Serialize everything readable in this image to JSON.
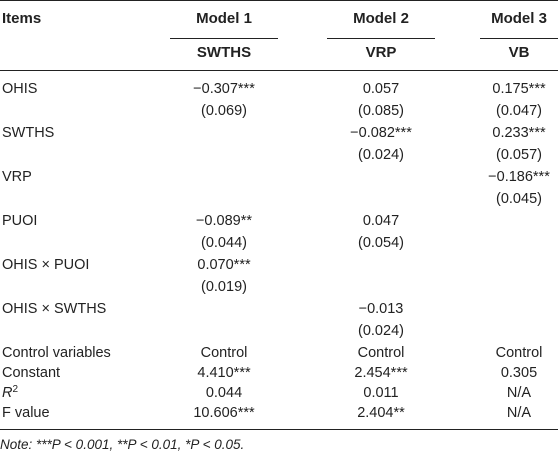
{
  "header": {
    "items": "Items",
    "models": [
      "Model 1",
      "Model 2",
      "Model 3"
    ],
    "dvs": [
      "SWTHS",
      "VRP",
      "VB"
    ]
  },
  "rows": [
    {
      "label": "OHIS",
      "m1": "−0.307***",
      "m1_se": "(0.069)",
      "m2": "0.057",
      "m2_se": "(0.085)",
      "m3": "0.175***",
      "m3_se": "(0.047)"
    },
    {
      "label": "SWTHS",
      "m2": "−0.082***",
      "m2_se": "(0.024)",
      "m3": "0.233***",
      "m3_se": "(0.057)"
    },
    {
      "label": "VRP",
      "m3": "−0.186***",
      "m3_se": "(0.045)"
    },
    {
      "label": "PUOI",
      "m1": "−0.089**",
      "m1_se": "(0.044)",
      "m2": "0.047",
      "m2_se": "(0.054)"
    },
    {
      "label": "OHIS × PUOI",
      "m1": "0.070***",
      "m1_se": "(0.019)"
    },
    {
      "label": "OHIS × SWTHS",
      "m2": "−0.013",
      "m2_se": "(0.024)"
    },
    {
      "label": "Control variables",
      "m1": "Control",
      "m2": "Control",
      "m3": "Control"
    },
    {
      "label": "Constant",
      "m1": "4.410***",
      "m2": "2.454***",
      "m3": "0.305"
    },
    {
      "label": "R",
      "label_sup": "2",
      "m1": "0.044",
      "m2": "0.011",
      "m3": "N/A"
    },
    {
      "label": "F value",
      "m1": "10.606***",
      "m2": "2.404**",
      "m3": "N/A"
    }
  ],
  "note": {
    "prefix": "Note: ",
    "text": "***P < 0.001, **P < 0.01, *P < 0.05."
  }
}
